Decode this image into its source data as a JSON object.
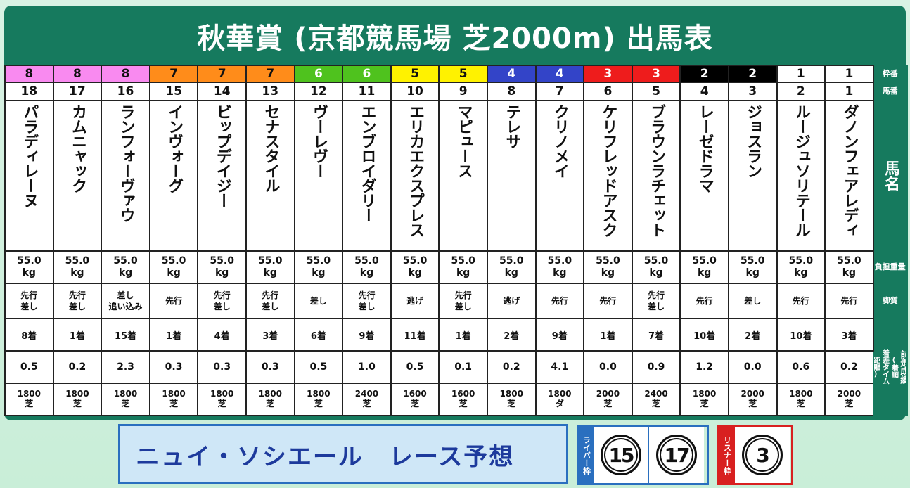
{
  "title": "秋華賞 (京都競馬場 芝2000m) 出馬表",
  "row_labels": {
    "waku": "枠番",
    "umaban": "馬番",
    "name": "馬名",
    "weight": "負担重量",
    "style": "脚質",
    "prev": "前走成績",
    "prev_sub1": "(着順",
    "prev_sub2": "着差タイム",
    "prev_sub3": "距離)"
  },
  "horses": [
    {
      "waku": "8",
      "num": "18",
      "name": "パラディレーヌ",
      "wt1": "55.0",
      "wt2": "kg",
      "style1": "先行",
      "style2": "差し",
      "place": "8着",
      "diff": "0.5",
      "dist": "1800",
      "surf": "芝",
      "color": "#f98af0",
      "tcolor": "#111"
    },
    {
      "waku": "8",
      "num": "17",
      "name": "カムニャック",
      "wt1": "55.0",
      "wt2": "kg",
      "style1": "先行",
      "style2": "差し",
      "place": "1着",
      "diff": "0.2",
      "dist": "1800",
      "surf": "芝",
      "color": "#f98af0",
      "tcolor": "#111"
    },
    {
      "waku": "8",
      "num": "16",
      "name": "ランフォーヴァウ",
      "wt1": "55.0",
      "wt2": "kg",
      "style1": "差し",
      "style2": "追い込み",
      "place": "15着",
      "diff": "2.3",
      "dist": "1800",
      "surf": "芝",
      "color": "#f98af0",
      "tcolor": "#111"
    },
    {
      "waku": "7",
      "num": "15",
      "name": "インヴォーグ",
      "wt1": "55.0",
      "wt2": "kg",
      "style1": "先行",
      "style2": "",
      "place": "1着",
      "diff": "0.3",
      "dist": "1800",
      "surf": "芝",
      "color": "#ff8c1a",
      "tcolor": "#111"
    },
    {
      "waku": "7",
      "num": "14",
      "name": "ビップデイジー",
      "wt1": "55.0",
      "wt2": "kg",
      "style1": "先行",
      "style2": "差し",
      "place": "4着",
      "diff": "0.3",
      "dist": "1800",
      "surf": "芝",
      "color": "#ff8c1a",
      "tcolor": "#111"
    },
    {
      "waku": "7",
      "num": "13",
      "name": "セナスタイル",
      "wt1": "55.0",
      "wt2": "kg",
      "style1": "先行",
      "style2": "差し",
      "place": "3着",
      "diff": "0.3",
      "dist": "1800",
      "surf": "芝",
      "color": "#ff8c1a",
      "tcolor": "#111"
    },
    {
      "waku": "6",
      "num": "12",
      "name": "ヴーレヴー",
      "wt1": "55.0",
      "wt2": "kg",
      "style1": "差し",
      "style2": "",
      "place": "6着",
      "diff": "0.5",
      "dist": "1800",
      "surf": "芝",
      "color": "#4fc21e",
      "tcolor": "#fff"
    },
    {
      "waku": "6",
      "num": "11",
      "name": "エンブロイダリー",
      "wt1": "55.0",
      "wt2": "kg",
      "style1": "先行",
      "style2": "差し",
      "place": "9着",
      "diff": "1.0",
      "dist": "2400",
      "surf": "芝",
      "color": "#4fc21e",
      "tcolor": "#fff"
    },
    {
      "waku": "5",
      "num": "10",
      "name": "エリカエクスプレス",
      "wt1": "55.0",
      "wt2": "kg",
      "style1": "逃げ",
      "style2": "",
      "place": "11着",
      "diff": "0.5",
      "dist": "1600",
      "surf": "芝",
      "color": "#fff200",
      "tcolor": "#111"
    },
    {
      "waku": "5",
      "num": "9",
      "name": "マピュース",
      "wt1": "55.0",
      "wt2": "kg",
      "style1": "先行",
      "style2": "差し",
      "place": "1着",
      "diff": "0.1",
      "dist": "1600",
      "surf": "芝",
      "color": "#fff200",
      "tcolor": "#111"
    },
    {
      "waku": "4",
      "num": "8",
      "name": "テレサ",
      "wt1": "55.0",
      "wt2": "kg",
      "style1": "逃げ",
      "style2": "",
      "place": "2着",
      "diff": "0.2",
      "dist": "1800",
      "surf": "芝",
      "color": "#3344c8",
      "tcolor": "#fff"
    },
    {
      "waku": "4",
      "num": "7",
      "name": "クリノメイ",
      "wt1": "55.0",
      "wt2": "kg",
      "style1": "先行",
      "style2": "",
      "place": "9着",
      "diff": "4.1",
      "dist": "1800",
      "surf": "ダ",
      "color": "#3344c8",
      "tcolor": "#fff"
    },
    {
      "waku": "3",
      "num": "6",
      "name": "ケリフレッドアスク",
      "wt1": "55.0",
      "wt2": "kg",
      "style1": "先行",
      "style2": "",
      "place": "1着",
      "diff": "0.0",
      "dist": "2000",
      "surf": "芝",
      "color": "#ee1c1c",
      "tcolor": "#fff"
    },
    {
      "waku": "3",
      "num": "5",
      "name": "ブラウンラチェット",
      "wt1": "55.0",
      "wt2": "kg",
      "style1": "先行",
      "style2": "差し",
      "place": "7着",
      "diff": "0.9",
      "dist": "2400",
      "surf": "芝",
      "color": "#ee1c1c",
      "tcolor": "#fff"
    },
    {
      "waku": "2",
      "num": "4",
      "name": "レーゼドラマ",
      "wt1": "55.0",
      "wt2": "kg",
      "style1": "先行",
      "style2": "",
      "place": "10着",
      "diff": "1.2",
      "dist": "1800",
      "surf": "芝",
      "color": "#000000",
      "tcolor": "#fff"
    },
    {
      "waku": "2",
      "num": "3",
      "name": "ジョスラン",
      "wt1": "55.0",
      "wt2": "kg",
      "style1": "差し",
      "style2": "",
      "place": "2着",
      "diff": "0.0",
      "dist": "2000",
      "surf": "芝",
      "color": "#000000",
      "tcolor": "#fff"
    },
    {
      "waku": "1",
      "num": "2",
      "name": "ルージュソリテール",
      "wt1": "55.0",
      "wt2": "kg",
      "style1": "先行",
      "style2": "",
      "place": "10着",
      "diff": "0.6",
      "dist": "1800",
      "surf": "芝",
      "color": "#ffffff",
      "tcolor": "#111"
    },
    {
      "waku": "1",
      "num": "1",
      "name": "ダノンフェアレディ",
      "wt1": "55.0",
      "wt2": "kg",
      "style1": "先行",
      "style2": "",
      "place": "3着",
      "diff": "0.2",
      "dist": "2000",
      "surf": "芝",
      "color": "#ffffff",
      "tcolor": "#111"
    }
  ],
  "prediction_label": "ニュイ・ソシエール　レース予想",
  "liver_tag": "ライバー枠",
  "listener_tag": "リスナー枠",
  "liver_picks": [
    "15",
    "17"
  ],
  "listener_picks": [
    "3"
  ],
  "colors": {
    "panel": "#167a5e",
    "liver": "#2a6fbf",
    "listener": "#d82020"
  }
}
